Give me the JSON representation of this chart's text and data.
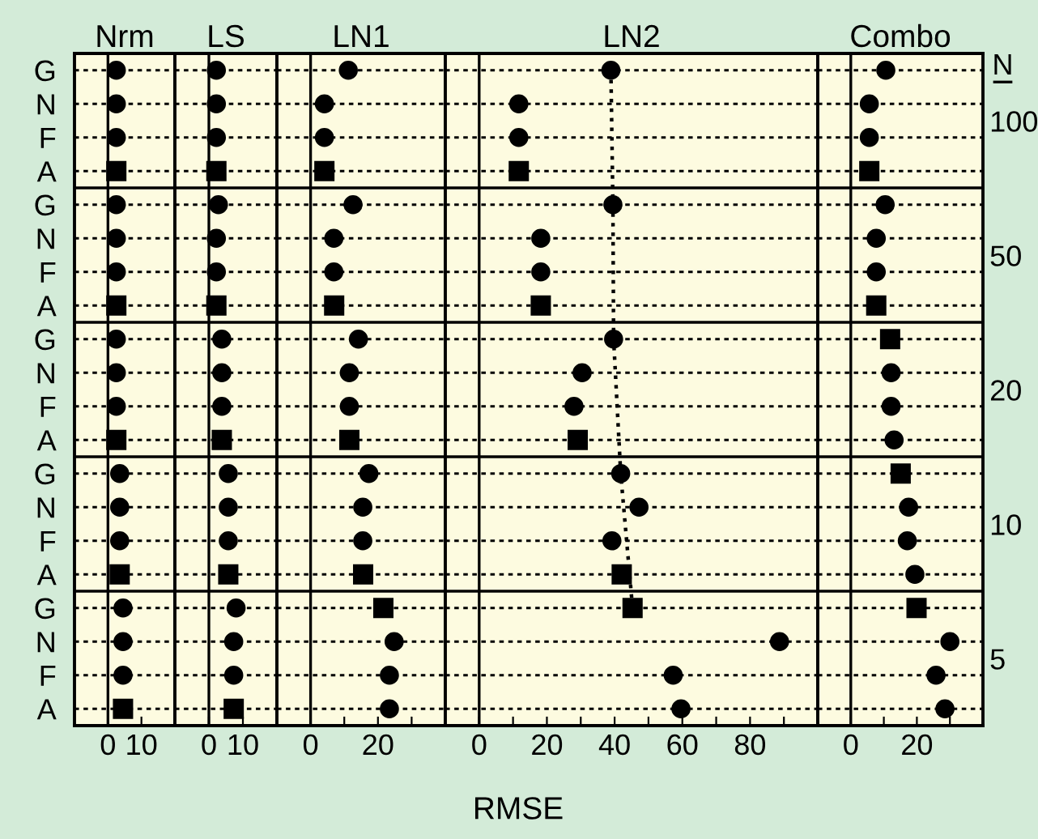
{
  "chart_data": [
    {
      "type": "scatter",
      "title": "Nrm",
      "orientation": "horizontal",
      "categories": [
        "G",
        "N",
        "F",
        "A",
        "G",
        "N",
        "F",
        "A",
        "G",
        "N",
        "F",
        "A",
        "G",
        "N",
        "F",
        "A",
        "G",
        "N",
        "F",
        "A"
      ],
      "xlim": [
        -10,
        20
      ],
      "xticks": [
        0,
        10
      ],
      "grid": "y",
      "ref_lines": [
        {
          "axis": "x",
          "value": 0,
          "color": "#000000"
        }
      ],
      "series": [
        {
          "color": "#000000",
          "marker": "circle",
          "values": [
            2.5,
            2.5,
            2.5,
            null,
            2.5,
            2.5,
            2.5,
            null,
            2.5,
            2.5,
            2.5,
            null,
            3.5,
            3.5,
            3.5,
            null,
            4.5,
            4.5,
            4.5,
            null
          ]
        },
        {
          "color": "#000000",
          "marker": "square",
          "values": [
            null,
            null,
            null,
            2.5,
            null,
            null,
            null,
            2.5,
            null,
            null,
            null,
            2.5,
            null,
            null,
            null,
            3.5,
            null,
            null,
            null,
            4.5
          ]
        }
      ]
    },
    {
      "type": "scatter",
      "title": "LS",
      "orientation": "horizontal",
      "tick_labels": "x",
      "categories": [
        null,
        null,
        null,
        null,
        null,
        null,
        null,
        null,
        null,
        null,
        null,
        null,
        null,
        null,
        null,
        null,
        null,
        null,
        null,
        null
      ],
      "xlim": [
        -10,
        20
      ],
      "xticks": [
        0,
        10
      ],
      "grid": "y",
      "ref_lines": [
        {
          "axis": "x",
          "value": 0,
          "color": "#000000"
        }
      ],
      "series": [
        {
          "color": "#000000",
          "marker": "circle",
          "values": [
            2.2,
            2.2,
            2.2,
            null,
            2.8,
            2.2,
            2.2,
            null,
            3.8,
            3.8,
            3.8,
            null,
            5.7,
            5.7,
            5.7,
            null,
            8,
            7.3,
            7.3,
            null
          ]
        },
        {
          "color": "#000000",
          "marker": "square",
          "values": [
            null,
            null,
            null,
            2.2,
            null,
            null,
            null,
            2.2,
            null,
            null,
            null,
            3.8,
            null,
            null,
            null,
            5.7,
            null,
            null,
            null,
            7.3
          ]
        }
      ]
    },
    {
      "type": "scatter",
      "title": "LN1",
      "orientation": "horizontal",
      "tick_labels": "x",
      "categories": [
        null,
        null,
        null,
        null,
        null,
        null,
        null,
        null,
        null,
        null,
        null,
        null,
        null,
        null,
        null,
        null,
        null,
        null,
        null,
        null
      ],
      "xlim": [
        -10,
        40
      ],
      "xticks": [
        0,
        {
          "value": 10,
          "label": null
        },
        20,
        {
          "value": 30,
          "label": null
        }
      ],
      "grid": "y",
      "ref_lines": [
        {
          "axis": "x",
          "value": 0,
          "color": "#000000"
        }
      ],
      "series": [
        {
          "color": "#000000",
          "marker": "circle",
          "values": [
            11.2,
            4.1,
            4.1,
            null,
            12.6,
            6.9,
            6.9,
            null,
            14.2,
            11.5,
            11.5,
            null,
            17.3,
            15.5,
            15.5,
            null,
            null,
            24.8,
            23.4,
            23.4
          ]
        },
        {
          "color": "#000000",
          "marker": "square",
          "values": [
            null,
            null,
            null,
            4.1,
            null,
            null,
            null,
            7,
            null,
            null,
            null,
            11.5,
            null,
            null,
            null,
            15.6,
            21.6,
            null,
            null,
            null
          ]
        }
      ]
    },
    {
      "type": "scatter",
      "title": "LN2",
      "xlabel": "RMSE",
      "orientation": "horizontal",
      "tick_labels": "x",
      "categories": [
        null,
        null,
        null,
        null,
        null,
        null,
        null,
        null,
        null,
        null,
        null,
        null,
        null,
        null,
        null,
        null,
        null,
        null,
        null,
        null
      ],
      "xlim": [
        -10,
        100
      ],
      "xticks": [
        0,
        {
          "value": 10,
          "label": null
        },
        20,
        {
          "value": 30,
          "label": null
        },
        40,
        {
          "value": 50,
          "label": null
        },
        60,
        {
          "value": 70,
          "label": null
        },
        80,
        {
          "value": 90,
          "label": null
        }
      ],
      "grid": "y",
      "ref_lines": [
        {
          "axis": "x",
          "value": 0,
          "color": "#000000"
        }
      ],
      "series": [
        {
          "color": "#000000",
          "marker": "circle",
          "values": [
            38.9,
            11.7,
            11.7,
            null,
            39.5,
            18.2,
            18.2,
            null,
            39.7,
            30.4,
            28,
            null,
            41.8,
            47.2,
            39.2,
            null,
            null,
            88.7,
            57.3,
            59.6
          ]
        },
        {
          "color": "#000000",
          "marker": "square",
          "values": [
            null,
            null,
            null,
            11.7,
            null,
            null,
            null,
            18.2,
            null,
            null,
            null,
            29.1,
            null,
            null,
            null,
            42.1,
            45.3,
            null,
            null,
            null
          ]
        },
        {
          "type": "line",
          "color": "#000000",
          "marker": "none",
          "line_style": "dotted",
          "values": [
            38.9,
            null,
            null,
            null,
            39.5,
            null,
            null,
            null,
            39.7,
            null,
            null,
            null,
            41.8,
            null,
            null,
            null,
            45.3,
            null,
            null,
            null
          ]
        }
      ]
    },
    {
      "type": "scatter",
      "title": "Combo",
      "orientation": "horizontal",
      "tick_labels": "x",
      "categories": [
        null,
        null,
        null,
        null,
        null,
        null,
        null,
        null,
        null,
        null,
        null,
        null,
        null,
        null,
        null,
        null,
        null,
        null,
        null,
        null
      ],
      "xlim": [
        -10,
        40
      ],
      "xticks": [
        0,
        {
          "value": 10,
          "label": null
        },
        20,
        {
          "value": 30,
          "label": null
        }
      ],
      "grid": "y",
      "ref_lines": [
        {
          "axis": "x",
          "value": 0,
          "color": "#000000"
        }
      ],
      "annotations": [
        "N",
        "100",
        "50",
        "20",
        "10",
        "5"
      ],
      "series": [
        {
          "color": "#000000",
          "marker": "circle",
          "values": [
            10.6,
            5.6,
            5.6,
            null,
            10.4,
            7.7,
            7.7,
            null,
            null,
            12.2,
            12.2,
            13.1,
            null,
            17.5,
            17.1,
            19.4,
            null,
            30,
            25.8,
            28.5
          ]
        },
        {
          "color": "#000000",
          "marker": "square",
          "values": [
            null,
            null,
            null,
            5.6,
            null,
            null,
            null,
            7.7,
            11.9,
            null,
            null,
            null,
            15.1,
            null,
            null,
            null,
            19.9,
            null,
            null,
            null
          ]
        }
      ]
    }
  ]
}
